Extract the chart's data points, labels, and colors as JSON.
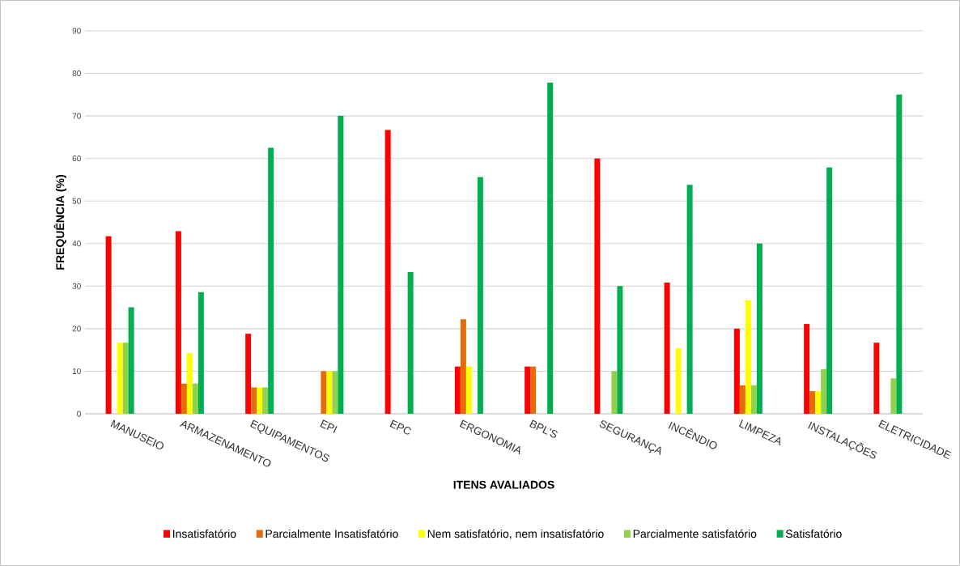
{
  "chart_data": {
    "type": "bar",
    "xlabel": "ITENS AVALIADOS",
    "ylabel": "FREQUÊNCIA (%)",
    "categories": [
      "MANUSEIO",
      "ARMAZENAMENTO",
      "EQUIPAMENTOS",
      "EPI",
      "EPC",
      "ERGONOMIA",
      "BPL'S",
      "SEGURANÇA",
      "INCÊNDIO",
      "LIMPEZA",
      "INSTALAÇÕES",
      "ELETRICIDADE"
    ],
    "series": [
      {
        "name": "Insatisfatório",
        "color": "#ff0000",
        "values": [
          41.7,
          42.9,
          18.8,
          0,
          66.7,
          11.1,
          11.1,
          60,
          30.8,
          20,
          21.1,
          16.7
        ]
      },
      {
        "name": "Parcialmente Insatisfatório",
        "color": "#e46c0a",
        "values": [
          0,
          7.1,
          6.2,
          10,
          0,
          22.2,
          11.1,
          0,
          0,
          6.7,
          5.3,
          0
        ]
      },
      {
        "name": "Nem satisfatório, nem insatisfatório",
        "color": "#ffff00",
        "values": [
          16.7,
          14.3,
          6.2,
          10,
          0,
          11.1,
          0,
          0,
          15.4,
          26.7,
          5.3,
          0
        ]
      },
      {
        "name": "Parcialmente satisfatório",
        "color": "#92d050",
        "values": [
          16.7,
          7.1,
          6.2,
          10,
          0,
          0,
          0,
          10,
          0,
          6.7,
          10.5,
          8.3
        ]
      },
      {
        "name": "Satisfatório",
        "color": "#00b050",
        "values": [
          25,
          28.6,
          62.5,
          70,
          33.3,
          55.6,
          77.8,
          30,
          53.8,
          40,
          57.9,
          75
        ]
      }
    ],
    "ylim": [
      0,
      90
    ],
    "yticks": [
      0,
      10,
      20,
      30,
      40,
      50,
      60,
      70,
      80,
      90
    ],
    "grid": "y",
    "legend": "bottom"
  }
}
